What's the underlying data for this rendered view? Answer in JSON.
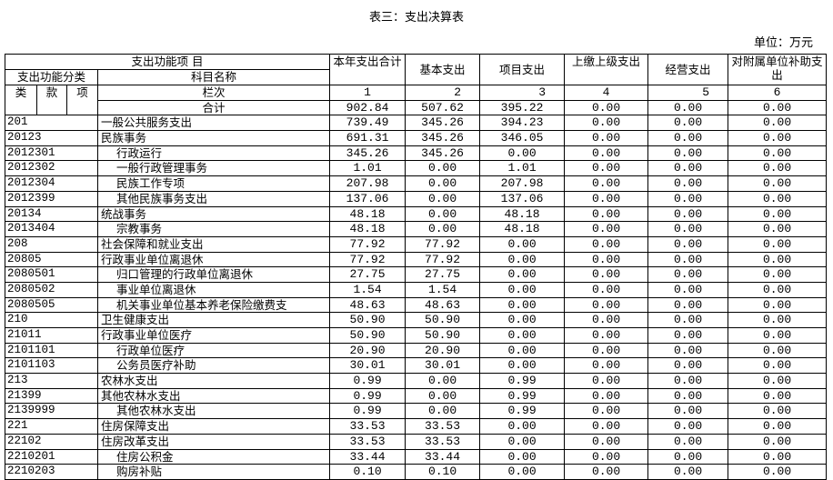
{
  "title": "表三：支出决算表",
  "unit": "单位：万元",
  "header": {
    "func_item": "支出功能项 目",
    "func_class": "支出功能分类",
    "subject_name": "科目名称",
    "lei": "类",
    "kuan": "款",
    "xiang": "项",
    "lanci": "栏次",
    "total_label": "合计",
    "cols": [
      "本年支出合计",
      "基本支出",
      "项目支出",
      "上缴上级支出",
      "经营支出",
      "对附属单位补助支出"
    ],
    "col_nums": [
      "1",
      "2",
      "3",
      "4",
      "5",
      "6"
    ]
  },
  "totals": [
    "902.84",
    "507.62",
    "395.22",
    "0.00",
    "0.00",
    "0.00"
  ],
  "rows": [
    {
      "code": "201",
      "name": "一般公共服务支出",
      "level": 1,
      "v": [
        "739.49",
        "345.26",
        "394.23",
        "0.00",
        "0.00",
        "0.00"
      ]
    },
    {
      "code": "20123",
      "name": "民族事务",
      "level": 1,
      "v": [
        "691.31",
        "345.26",
        "346.05",
        "0.00",
        "0.00",
        "0.00"
      ]
    },
    {
      "code": "2012301",
      "name": "行政运行",
      "level": 2,
      "v": [
        "345.26",
        "345.26",
        "0.00",
        "0.00",
        "0.00",
        "0.00"
      ]
    },
    {
      "code": "2012302",
      "name": "一般行政管理事务",
      "level": 2,
      "v": [
        "1.01",
        "0.00",
        "1.01",
        "0.00",
        "0.00",
        "0.00"
      ]
    },
    {
      "code": "2012304",
      "name": "民族工作专项",
      "level": 2,
      "v": [
        "207.98",
        "0.00",
        "207.98",
        "0.00",
        "0.00",
        "0.00"
      ]
    },
    {
      "code": "2012399",
      "name": "其他民族事务支出",
      "level": 2,
      "v": [
        "137.06",
        "0.00",
        "137.06",
        "0.00",
        "0.00",
        "0.00"
      ]
    },
    {
      "code": "20134",
      "name": "统战事务",
      "level": 1,
      "v": [
        "48.18",
        "0.00",
        "48.18",
        "0.00",
        "0.00",
        "0.00"
      ]
    },
    {
      "code": "2013404",
      "name": "宗教事务",
      "level": 2,
      "v": [
        "48.18",
        "0.00",
        "48.18",
        "0.00",
        "0.00",
        "0.00"
      ]
    },
    {
      "code": "208",
      "name": "社会保障和就业支出",
      "level": 1,
      "v": [
        "77.92",
        "77.92",
        "0.00",
        "0.00",
        "0.00",
        "0.00"
      ]
    },
    {
      "code": "20805",
      "name": "行政事业单位离退休",
      "level": 1,
      "v": [
        "77.92",
        "77.92",
        "0.00",
        "0.00",
        "0.00",
        "0.00"
      ]
    },
    {
      "code": "2080501",
      "name": "归口管理的行政单位离退休",
      "level": 2,
      "v": [
        "27.75",
        "27.75",
        "0.00",
        "0.00",
        "0.00",
        "0.00"
      ]
    },
    {
      "code": "2080502",
      "name": "事业单位离退休",
      "level": 2,
      "v": [
        "1.54",
        "1.54",
        "0.00",
        "0.00",
        "0.00",
        "0.00"
      ]
    },
    {
      "code": "2080505",
      "name": "机关事业单位基本养老保险缴费支",
      "level": 2,
      "v": [
        "48.63",
        "48.63",
        "0.00",
        "0.00",
        "0.00",
        "0.00"
      ]
    },
    {
      "code": "210",
      "name": "卫生健康支出",
      "level": 1,
      "v": [
        "50.90",
        "50.90",
        "0.00",
        "0.00",
        "0.00",
        "0.00"
      ]
    },
    {
      "code": "21011",
      "name": "行政事业单位医疗",
      "level": 1,
      "v": [
        "50.90",
        "50.90",
        "0.00",
        "0.00",
        "0.00",
        "0.00"
      ]
    },
    {
      "code": "2101101",
      "name": "行政单位医疗",
      "level": 2,
      "v": [
        "20.90",
        "20.90",
        "0.00",
        "0.00",
        "0.00",
        "0.00"
      ]
    },
    {
      "code": "2101103",
      "name": "公务员医疗补助",
      "level": 2,
      "v": [
        "30.01",
        "30.01",
        "0.00",
        "0.00",
        "0.00",
        "0.00"
      ]
    },
    {
      "code": "213",
      "name": "农林水支出",
      "level": 1,
      "v": [
        "0.99",
        "0.00",
        "0.99",
        "0.00",
        "0.00",
        "0.00"
      ]
    },
    {
      "code": "21399",
      "name": "其他农林水支出",
      "level": 1,
      "v": [
        "0.99",
        "0.00",
        "0.99",
        "0.00",
        "0.00",
        "0.00"
      ]
    },
    {
      "code": "2139999",
      "name": "其他农林水支出",
      "level": 2,
      "v": [
        "0.99",
        "0.00",
        "0.99",
        "0.00",
        "0.00",
        "0.00"
      ]
    },
    {
      "code": "221",
      "name": "住房保障支出",
      "level": 1,
      "v": [
        "33.53",
        "33.53",
        "0.00",
        "0.00",
        "0.00",
        "0.00"
      ]
    },
    {
      "code": "22102",
      "name": "住房改革支出",
      "level": 1,
      "v": [
        "33.53",
        "33.53",
        "0.00",
        "0.00",
        "0.00",
        "0.00"
      ]
    },
    {
      "code": "2210201",
      "name": "住房公积金",
      "level": 2,
      "v": [
        "33.44",
        "33.44",
        "0.00",
        "0.00",
        "0.00",
        "0.00"
      ]
    },
    {
      "code": "2210203",
      "name": "购房补贴",
      "level": 2,
      "v": [
        "0.10",
        "0.10",
        "0.00",
        "0.00",
        "0.00",
        "0.00"
      ]
    }
  ]
}
